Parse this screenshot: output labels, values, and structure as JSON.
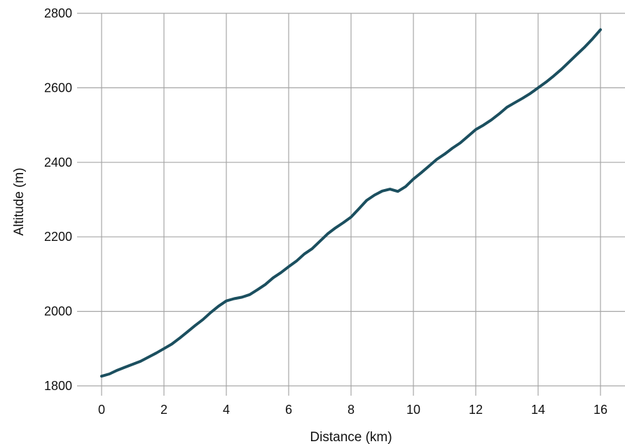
{
  "chart_data": {
    "type": "line",
    "xlabel": "Distance (km)",
    "ylabel": "Altitude (m)",
    "xlim": [
      0,
      16
    ],
    "ylim": [
      1800,
      2800
    ],
    "xticks": [
      0,
      2,
      4,
      6,
      8,
      10,
      12,
      14,
      16
    ],
    "yticks": [
      1800,
      2000,
      2200,
      2400,
      2600,
      2800
    ],
    "grid": true,
    "colors": {
      "line": "#1b4f5f",
      "grid": "#a6a6a6"
    },
    "series": [
      {
        "x": [
          0,
          0.25,
          0.5,
          0.75,
          1.0,
          1.25,
          1.5,
          1.75,
          2.0,
          2.25,
          2.5,
          2.75,
          3.0,
          3.25,
          3.5,
          3.75,
          4.0,
          4.25,
          4.5,
          4.75,
          5.0,
          5.25,
          5.5,
          5.75,
          6.0,
          6.25,
          6.5,
          6.75,
          7.0,
          7.25,
          7.5,
          7.75,
          8.0,
          8.25,
          8.5,
          8.75,
          9.0,
          9.25,
          9.5,
          9.75,
          10.0,
          10.25,
          10.5,
          10.75,
          11.0,
          11.25,
          11.5,
          11.75,
          12.0,
          12.25,
          12.5,
          12.75,
          13.0,
          13.25,
          13.5,
          13.75,
          14.0,
          14.25,
          14.5,
          14.75,
          15.0,
          15.25,
          15.5,
          15.75,
          16.0
        ],
        "y": [
          1826,
          1832,
          1842,
          1850,
          1858,
          1866,
          1877,
          1888,
          1900,
          1912,
          1928,
          1945,
          1962,
          1978,
          1997,
          2014,
          2028,
          2034,
          2038,
          2045,
          2058,
          2072,
          2090,
          2104,
          2120,
          2135,
          2154,
          2168,
          2188,
          2208,
          2224,
          2238,
          2253,
          2275,
          2298,
          2312,
          2323,
          2328,
          2322,
          2335,
          2355,
          2372,
          2390,
          2408,
          2422,
          2438,
          2452,
          2470,
          2488,
          2500,
          2514,
          2530,
          2548,
          2560,
          2572,
          2585,
          2600,
          2615,
          2632,
          2650,
          2670,
          2690,
          2710,
          2732,
          2756
        ]
      }
    ]
  }
}
